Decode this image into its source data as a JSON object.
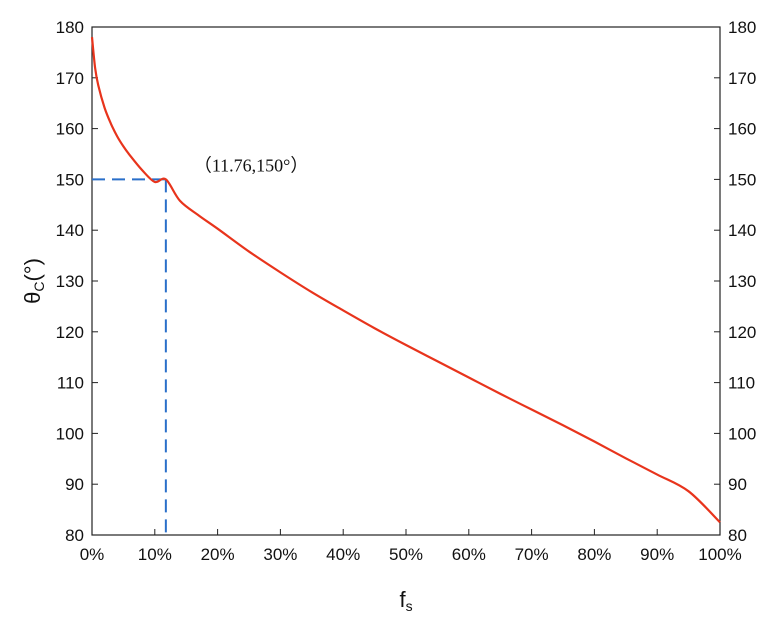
{
  "chart_data": {
    "type": "line",
    "title": "",
    "xlabel": "f",
    "xlabel_sub": "s",
    "ylabel": "θ",
    "ylabel_sub": "C",
    "ylabel_suffix": "(°)",
    "xlim": [
      0,
      100
    ],
    "ylim": [
      80,
      180
    ],
    "x_ticks": [
      0,
      10,
      20,
      30,
      40,
      50,
      60,
      70,
      80,
      90,
      100
    ],
    "x_tick_labels": [
      "0%",
      "10%",
      "20%",
      "30%",
      "40%",
      "50%",
      "60%",
      "70%",
      "80%",
      "90%",
      "100%"
    ],
    "y_ticks": [
      80,
      90,
      100,
      110,
      120,
      130,
      140,
      150,
      160,
      170,
      180
    ],
    "y_tick_labels": [
      "80",
      "90",
      "100",
      "110",
      "120",
      "130",
      "140",
      "150",
      "160",
      "170",
      "180"
    ],
    "grid": false,
    "series": [
      {
        "color": "#e8341c",
        "x": [
          0,
          0.5,
          1,
          2,
          3,
          4,
          5,
          6,
          8,
          10,
          11.76,
          14,
          17,
          20,
          25,
          30,
          35,
          40,
          45,
          50,
          55,
          60,
          65,
          70,
          75,
          80,
          85,
          90,
          95,
          100
        ],
        "y": [
          178.0,
          171.9,
          168.5,
          164.1,
          161.0,
          158.5,
          156.5,
          154.8,
          151.8,
          149.5,
          150.0,
          145.8,
          142.9,
          140.3,
          135.8,
          131.7,
          127.8,
          124.2,
          120.7,
          117.4,
          114.2,
          111.0,
          107.8,
          104.7,
          101.6,
          98.4,
          95.1,
          91.9,
          88.6,
          82.5
        ]
      }
    ],
    "annotations": [
      {
        "text": "（11.76,150°）",
        "x": 11.76,
        "y": 150,
        "guide_color": "#2a6fc9"
      }
    ]
  }
}
